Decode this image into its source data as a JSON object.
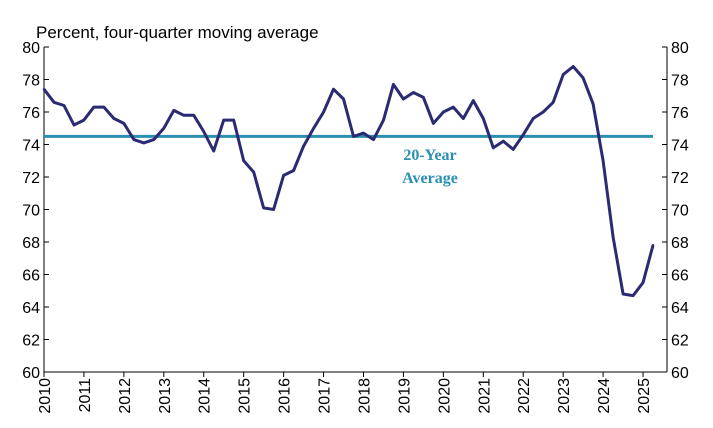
{
  "chart_data": {
    "type": "line",
    "title": "Percent, four-quarter moving average",
    "xlabel": "",
    "ylabel": "",
    "ylim": [
      60,
      80
    ],
    "yticks": [
      60,
      62,
      64,
      66,
      68,
      70,
      72,
      74,
      76,
      78,
      80
    ],
    "xticks": [
      "2010",
      "2011",
      "2012",
      "2013",
      "2014",
      "2015",
      "2016",
      "2017",
      "2018",
      "2019",
      "2020",
      "2021",
      "2022",
      "2023",
      "2024",
      "2025"
    ],
    "grid": false,
    "colors": {
      "series": "#2b2a72",
      "reference": "#2a8fb0"
    },
    "annotation": {
      "line1": "20-Year",
      "line2": "Average"
    },
    "reference_value": 74.5,
    "series": [
      {
        "x": [
          2010.0,
          2010.25,
          2010.5,
          2010.75,
          2011.0,
          2011.25,
          2011.5,
          2011.75,
          2012.0,
          2012.25,
          2012.5,
          2012.75,
          2013.0,
          2013.25,
          2013.5,
          2013.75,
          2014.0,
          2014.25,
          2014.5,
          2014.75,
          2015.0,
          2015.25,
          2015.5,
          2015.75,
          2016.0,
          2016.25,
          2016.5,
          2016.75,
          2017.0,
          2017.25,
          2017.5,
          2017.75,
          2018.0,
          2018.25,
          2018.5,
          2018.75,
          2019.0,
          2019.25,
          2019.5,
          2019.75,
          2020.0,
          2020.25,
          2020.5,
          2020.75,
          2021.0,
          2021.25,
          2021.5,
          2021.75,
          2022.0,
          2022.25,
          2022.5,
          2022.75,
          2023.0,
          2023.25,
          2023.5,
          2023.75,
          2024.0,
          2024.25,
          2024.5,
          2024.75,
          2025.0,
          2025.25
        ],
        "values": [
          77.4,
          76.6,
          76.4,
          75.2,
          75.5,
          76.3,
          76.3,
          75.6,
          75.3,
          74.3,
          74.1,
          74.3,
          75.0,
          76.1,
          75.8,
          75.8,
          74.8,
          73.6,
          75.5,
          75.5,
          73.0,
          72.3,
          70.1,
          70.0,
          72.1,
          72.4,
          73.9,
          75.0,
          76.0,
          77.4,
          76.8,
          74.5,
          74.7,
          74.3,
          75.5,
          77.7,
          76.8,
          77.2,
          76.9,
          75.3,
          76.0,
          76.3,
          75.6,
          76.7,
          75.6,
          73.8,
          74.2,
          73.7,
          74.6,
          75.6,
          76.0,
          76.6,
          78.3,
          78.8,
          78.1,
          76.5,
          73.0,
          68.3,
          64.8,
          64.7,
          65.5,
          67.8
        ]
      }
    ]
  }
}
